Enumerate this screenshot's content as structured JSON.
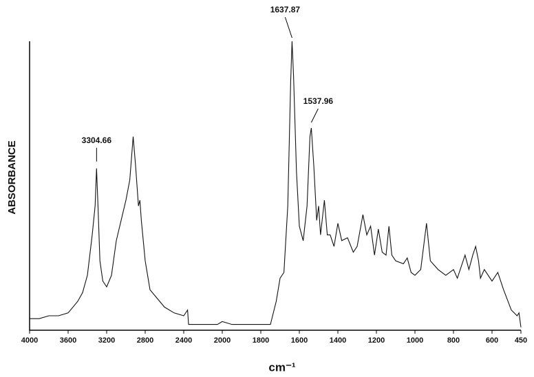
{
  "chart_data": {
    "type": "line",
    "xlabel": "cm⁻¹",
    "ylabel": "ABSORBANCE",
    "x": [
      4000,
      3900,
      3800,
      3700,
      3600,
      3500,
      3450,
      3400,
      3350,
      3320,
      3304.66,
      3290,
      3270,
      3240,
      3200,
      3150,
      3100,
      3050,
      3000,
      2960,
      2925,
      2900,
      2870,
      2855,
      2840,
      2800,
      2750,
      2700,
      2600,
      2500,
      2400,
      2360,
      2350,
      2300,
      2100,
      2050,
      2000,
      1950,
      1800,
      1750,
      1720,
      1700,
      1680,
      1660,
      1645,
      1637.87,
      1630,
      1615,
      1600,
      1580,
      1560,
      1545,
      1537.96,
      1525,
      1510,
      1500,
      1490,
      1470,
      1455,
      1440,
      1420,
      1400,
      1380,
      1350,
      1320,
      1300,
      1270,
      1250,
      1230,
      1210,
      1190,
      1170,
      1150,
      1135,
      1120,
      1100,
      1060,
      1040,
      1020,
      1000,
      970,
      940,
      920,
      880,
      840,
      800,
      780,
      740,
      720,
      700,
      685,
      670,
      660,
      640,
      600,
      570,
      540,
      500,
      470,
      460,
      450
    ],
    "values": [
      0.04,
      0.04,
      0.05,
      0.05,
      0.06,
      0.1,
      0.13,
      0.19,
      0.33,
      0.43,
      0.56,
      0.43,
      0.24,
      0.17,
      0.15,
      0.19,
      0.31,
      0.38,
      0.45,
      0.52,
      0.67,
      0.57,
      0.43,
      0.45,
      0.38,
      0.24,
      0.14,
      0.12,
      0.08,
      0.06,
      0.05,
      0.07,
      0.02,
      0.02,
      0.02,
      0.02,
      0.03,
      0.02,
      0.02,
      0.02,
      0.1,
      0.18,
      0.2,
      0.43,
      0.86,
      1.0,
      0.88,
      0.55,
      0.36,
      0.31,
      0.43,
      0.67,
      0.7,
      0.57,
      0.38,
      0.43,
      0.33,
      0.45,
      0.33,
      0.33,
      0.29,
      0.37,
      0.31,
      0.32,
      0.27,
      0.29,
      0.4,
      0.33,
      0.36,
      0.26,
      0.35,
      0.27,
      0.26,
      0.36,
      0.26,
      0.24,
      0.23,
      0.25,
      0.2,
      0.19,
      0.21,
      0.37,
      0.24,
      0.21,
      0.19,
      0.21,
      0.18,
      0.26,
      0.21,
      0.26,
      0.29,
      0.24,
      0.18,
      0.21,
      0.17,
      0.2,
      0.14,
      0.07,
      0.05,
      0.06,
      0.01
    ],
    "color": "#111111",
    "xlim": [
      4000,
      450
    ],
    "xbreak": 2000,
    "xticks": [
      4000,
      3600,
      3200,
      2800,
      2400,
      2000,
      1800,
      1600,
      1400,
      1200,
      1000,
      800,
      600,
      450
    ],
    "ylim": [
      0,
      1
    ],
    "annotations": [
      {
        "label": "3304.66",
        "x": 3304.66,
        "y": 0.56
      },
      {
        "label": "1637.87",
        "x": 1637.87,
        "y": 1.0
      },
      {
        "label": "1537.96",
        "x": 1537.96,
        "y": 0.7
      }
    ]
  }
}
